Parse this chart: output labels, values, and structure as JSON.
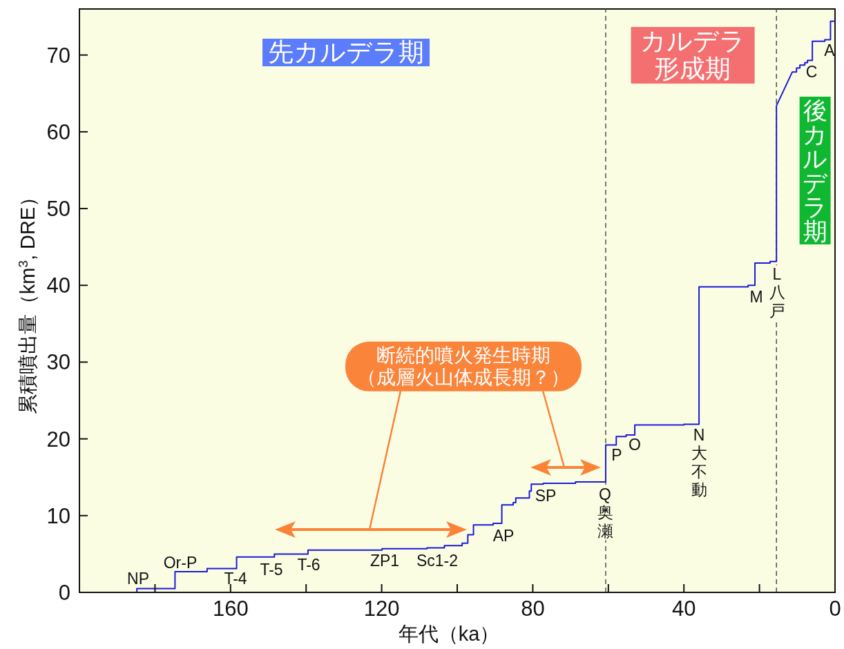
{
  "chart_data": {
    "type": "line",
    "xlabel": "年代（ka）",
    "ylabel": "累積噴出量（km$^{3}$, DRE）",
    "x": [
      184.8,
      184.8,
      174.7,
      174.7,
      166.2,
      166.2,
      158.4,
      158.4,
      148.4,
      148.4,
      139.5,
      139.5,
      119.9,
      119.9,
      108,
      108,
      103.4,
      103.4,
      98.7,
      98.7,
      97.2,
      97.2,
      95.7,
      95.7,
      90.5,
      90.5,
      88.2,
      88.2,
      85.2,
      85.2,
      84.5,
      84.5,
      80.9,
      80.9,
      80.4,
      80.4,
      77.2,
      77.2,
      68.7,
      68.7,
      60.7,
      60.7,
      57.9,
      57.9,
      55.3,
      55.3,
      53,
      53,
      40,
      40,
      36,
      36,
      23,
      23,
      21.2,
      21.2,
      17.2,
      17.2,
      15.5,
      15.5,
      11.3,
      10.2,
      10.2,
      9.3,
      9.3,
      8,
      8,
      7.3,
      7.3,
      6,
      6,
      2.7,
      2.7,
      1.2,
      1.2,
      0
    ],
    "series": [
      {
        "color": "#1a1ad6",
        "values": [
          0,
          0.5,
          0.5,
          2.7,
          2.7,
          3.1,
          3.1,
          4.6,
          4.6,
          5.0,
          5.0,
          5.5,
          5.5,
          5.7,
          5.7,
          5.8,
          5.8,
          6.1,
          6.1,
          6.4,
          6.4,
          7.5,
          7.5,
          8.8,
          8.8,
          9.0,
          9.0,
          11.4,
          11.4,
          11.7,
          11.7,
          12.3,
          12.3,
          13.2,
          13.2,
          14.1,
          14.1,
          14.2,
          14.2,
          14.4,
          14.4,
          19.2,
          19.2,
          20.3,
          20.3,
          20.5,
          20.5,
          21.8,
          21.8,
          21.9,
          21.9,
          39.8,
          39.8,
          40.0,
          40.0,
          42.9,
          42.9,
          43.1,
          43.1,
          63.4,
          67.8,
          67.8,
          68.3,
          68.3,
          68.7,
          68.7,
          69.0,
          69.0,
          69.3,
          69.3,
          71.8,
          71.8,
          72.0,
          72.0,
          74.4,
          74.4
        ]
      }
    ],
    "xlim": [
      200,
      0
    ],
    "xticks": [
      {
        "value": 180,
        "label": null
      },
      160,
      {
        "value": 140,
        "label": null
      },
      120,
      {
        "value": 100,
        "label": null
      },
      80,
      {
        "value": 60,
        "label": null
      },
      40,
      {
        "value": 20,
        "label": null
      },
      0
    ],
    "ylim": [
      0,
      76
    ],
    "yticks": [
      0,
      10,
      20,
      30,
      40,
      50,
      60,
      70
    ],
    "ref_lines": [
      {
        "axis": "x",
        "value": 60.7,
        "line_style": "dashed",
        "color": "#4d4d4d"
      },
      {
        "axis": "x",
        "value": 15.5,
        "line_style": "dashed",
        "color": "#4d4d4d"
      }
    ],
    "annotations": [
      "先カルデラ期",
      "カルデラ形成期",
      "後カルデラ期",
      "断続的噴火発生時期",
      "（成層火山体成長期？）",
      "NP",
      "Or-P",
      "T-4",
      "T-5",
      "T-6",
      "ZP1",
      "Sc1-2",
      "AP",
      "SP",
      "Q奥瀬",
      "P",
      "O",
      "N大不動",
      "M",
      "L八戸",
      "C",
      "A"
    ]
  }
}
